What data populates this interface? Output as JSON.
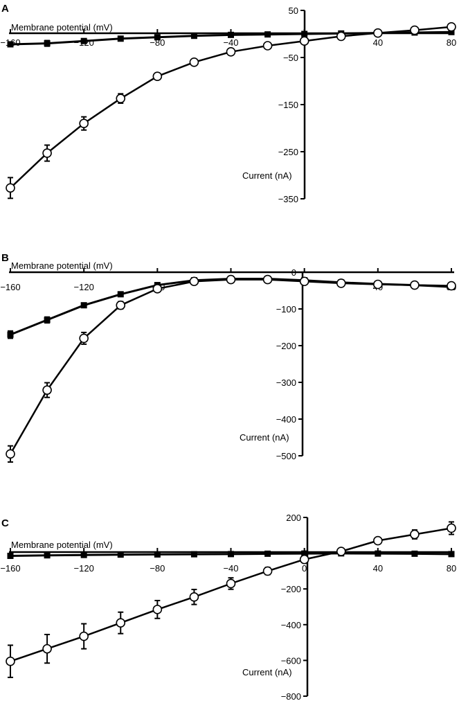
{
  "chart_data": [
    {
      "panel": "A",
      "type": "line",
      "xlabel": "Membrane potential (mV)",
      "ylabel": "Current (nA)",
      "xlim": [
        -160,
        80
      ],
      "ylim": [
        -350,
        50
      ],
      "xticks": [
        -160,
        -120,
        -80,
        -40,
        0,
        40,
        80
      ],
      "yticks": [
        50,
        -50,
        -150,
        -250,
        -350
      ],
      "x": [
        -160,
        -140,
        -120,
        -100,
        -80,
        -60,
        -40,
        -20,
        0,
        20,
        40,
        60,
        80
      ],
      "series": [
        {
          "marker": "open-circle",
          "values": [
            -327,
            -253,
            -190,
            -137,
            -90,
            -60,
            -38,
            -25,
            -15,
            -5,
            2,
            8,
            15
          ],
          "errors": [
            22,
            17,
            14,
            10,
            7,
            5,
            4,
            3,
            2,
            2,
            2,
            2,
            3
          ]
        },
        {
          "marker": "filled-square",
          "values": [
            -22,
            -20,
            -15,
            -10,
            -7,
            -4,
            -2,
            -1,
            0,
            1,
            2,
            3,
            4
          ],
          "errors": [
            3,
            6,
            3,
            2,
            2,
            1,
            1,
            1,
            1,
            1,
            1,
            1,
            1
          ]
        }
      ]
    },
    {
      "panel": "B",
      "type": "line",
      "xlabel": "Membrane potential (mV)",
      "ylabel": "Current (nA)",
      "xlim": [
        -160,
        80
      ],
      "ylim": [
        -500,
        0
      ],
      "xticks": [
        -160,
        -120,
        -80,
        -40,
        0,
        40,
        80
      ],
      "xtick_labels": [
        "−160",
        "−120",
        "−80",
        "",
        "",
        "40",
        "80"
      ],
      "yticks": [
        0,
        -100,
        -200,
        -300,
        -400,
        -500
      ],
      "x": [
        -160,
        -140,
        -120,
        -100,
        -80,
        -60,
        -40,
        -20,
        0,
        20,
        40,
        60,
        80
      ],
      "series": [
        {
          "marker": "open-circle",
          "values": [
            -495,
            -321,
            -180,
            -90,
            -45,
            -25,
            -20,
            -20,
            -25,
            -30,
            -33,
            -35,
            -37
          ],
          "errors": [
            22,
            20,
            16,
            10,
            6,
            4,
            3,
            3,
            3,
            3,
            3,
            3,
            3
          ]
        },
        {
          "marker": "filled-square",
          "values": [
            -170,
            -130,
            -90,
            -60,
            -35,
            -22,
            -18,
            -18,
            -22,
            -28,
            -32,
            -35,
            -40
          ],
          "errors": [
            10,
            8,
            6,
            5,
            4,
            3,
            3,
            3,
            3,
            3,
            3,
            3,
            3
          ]
        }
      ]
    },
    {
      "panel": "C",
      "type": "line",
      "xlabel": "Membrane potential (mV)",
      "ylabel": "Current (nA)",
      "xlim": [
        -160,
        80
      ],
      "ylim": [
        -800,
        200
      ],
      "xticks": [
        -160,
        -120,
        -80,
        -40,
        0,
        40,
        80
      ],
      "yticks": [
        200,
        0,
        -200,
        -400,
        -600,
        -800
      ],
      "ytick_labels": [
        "200",
        "",
        "−200",
        "−400",
        "−600",
        "−800"
      ],
      "x": [
        -160,
        -140,
        -120,
        -100,
        -80,
        -60,
        -40,
        -20,
        0,
        20,
        40,
        60,
        80
      ],
      "series": [
        {
          "marker": "open-circle",
          "values": [
            -605,
            -535,
            -465,
            -390,
            -315,
            -245,
            -170,
            -100,
            -35,
            10,
            70,
            105,
            140
          ],
          "errors": [
            90,
            80,
            70,
            60,
            50,
            42,
            32,
            20,
            12,
            10,
            12,
            25,
            35
          ]
        },
        {
          "marker": "filled-square",
          "values": [
            -15,
            -12,
            -10,
            -8,
            -7,
            -6,
            -5,
            -3,
            -2,
            -1,
            -2,
            -3,
            -5
          ],
          "errors": [
            3,
            3,
            3,
            3,
            3,
            3,
            3,
            3,
            3,
            3,
            3,
            3,
            3
          ]
        }
      ]
    }
  ]
}
